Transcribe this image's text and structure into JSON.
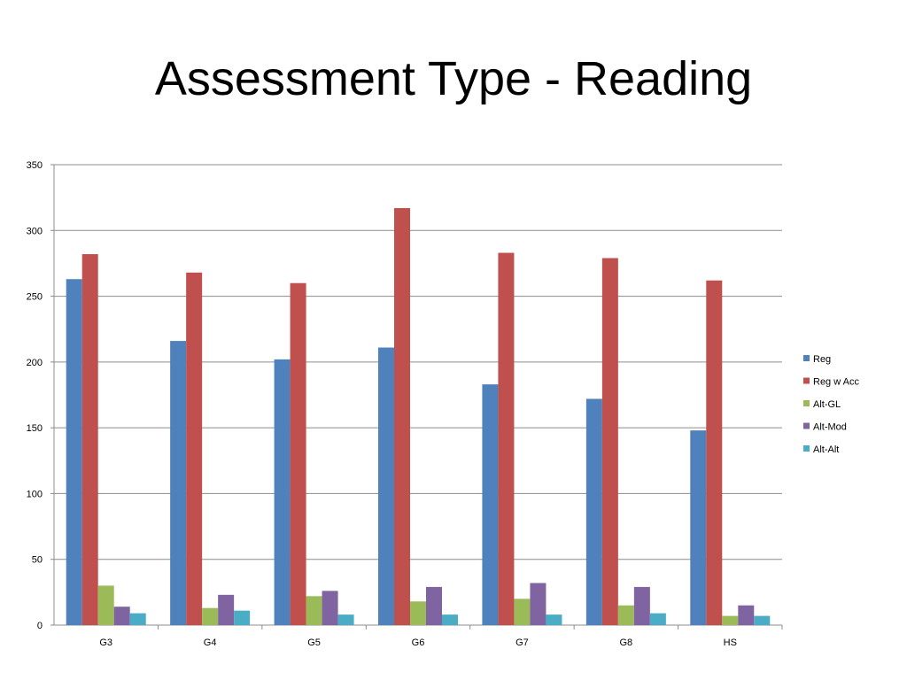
{
  "slide": {
    "title": "Assessment Type - Reading"
  },
  "chart_data": {
    "type": "bar",
    "title": "",
    "xlabel": "",
    "ylabel": "",
    "ylim": [
      0,
      350
    ],
    "yticks": [
      0,
      50,
      100,
      150,
      200,
      250,
      300,
      350
    ],
    "grid": true,
    "legend_position": "right",
    "categories": [
      "G3",
      "G4",
      "G5",
      "G6",
      "G7",
      "G8",
      "HS"
    ],
    "series": [
      {
        "name": "Reg",
        "color": "#4F81BD",
        "values": [
          263,
          216,
          202,
          211,
          183,
          172,
          148
        ]
      },
      {
        "name": "Reg w Acc",
        "color": "#C0504D",
        "values": [
          282,
          268,
          260,
          317,
          283,
          279,
          262
        ]
      },
      {
        "name": "Alt-GL",
        "color": "#9BBB59",
        "values": [
          30,
          13,
          22,
          18,
          20,
          15,
          7
        ]
      },
      {
        "name": "Alt-Mod",
        "color": "#8064A2",
        "values": [
          14,
          23,
          26,
          29,
          32,
          29,
          15
        ]
      },
      {
        "name": "Alt-Alt",
        "color": "#4BACC6",
        "values": [
          9,
          11,
          8,
          8,
          8,
          9,
          7
        ]
      }
    ]
  }
}
